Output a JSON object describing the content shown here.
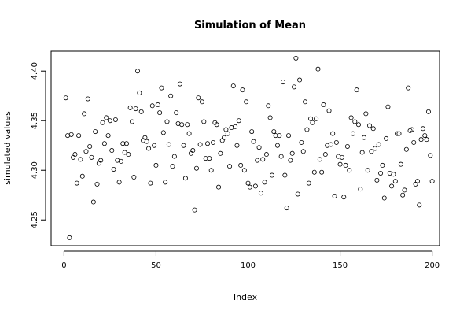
{
  "chart_data": {
    "type": "scatter",
    "title": "Simulation of Mean",
    "xlabel": "Index",
    "ylabel": "simulated values",
    "xlim": [
      -7,
      204
    ],
    "ylim": [
      4.224,
      4.42
    ],
    "xticks": [
      0,
      50,
      100,
      150,
      200
    ],
    "yticks": [
      4.25,
      4.3,
      4.35,
      4.4
    ],
    "xtick_labels": [
      "0",
      "50",
      "100",
      "150",
      "200"
    ],
    "ytick_labels": [
      "4.25",
      "4.30",
      "4.35",
      "4.40"
    ],
    "grid": false,
    "marker": "open-circle",
    "series": [
      {
        "x": [
          1,
          2,
          3,
          4,
          5,
          6,
          7,
          8,
          9,
          10,
          11,
          12,
          13,
          14,
          15,
          16,
          17,
          18,
          19,
          20,
          21,
          22,
          23,
          24,
          25,
          26,
          27,
          28,
          29,
          30,
          31,
          32,
          33,
          34,
          35,
          36,
          37,
          38,
          39,
          40,
          41,
          42,
          43,
          44,
          45,
          46,
          47,
          48,
          49,
          50,
          51,
          52,
          53,
          54,
          55,
          56,
          57,
          58,
          59,
          60,
          61,
          62,
          63,
          64,
          65,
          66,
          67,
          68,
          69,
          70,
          71,
          72,
          73,
          74,
          75,
          76,
          77,
          78,
          79,
          80,
          81,
          82,
          83,
          84,
          85,
          86,
          87,
          88,
          89,
          90,
          91,
          92,
          93,
          94,
          95,
          96,
          97,
          98,
          99,
          100,
          101,
          102,
          103,
          104,
          105,
          106,
          107,
          108,
          109,
          110,
          111,
          112,
          113,
          114,
          115,
          116,
          117,
          118,
          119,
          120,
          121,
          122,
          123,
          124,
          125,
          126,
          127,
          128,
          129,
          130,
          131,
          132,
          133,
          134,
          135,
          136,
          137,
          138,
          139,
          140,
          141,
          142,
          143,
          144,
          145,
          146,
          147,
          148,
          149,
          150,
          151,
          152,
          153,
          154,
          155,
          156,
          157,
          158,
          159,
          160,
          161,
          162,
          163,
          164,
          165,
          166,
          167,
          168,
          169,
          170,
          171,
          172,
          173,
          174,
          175,
          176,
          177,
          178,
          179,
          180,
          181,
          182,
          183,
          184,
          185,
          186,
          187,
          188,
          189,
          190,
          191,
          192,
          193,
          194,
          195,
          196,
          197,
          198,
          199,
          200
        ],
        "y": [
          4.373,
          4.335,
          4.232,
          4.336,
          4.313,
          4.316,
          4.287,
          4.335,
          4.311,
          4.294,
          4.357,
          4.319,
          4.372,
          4.324,
          4.313,
          4.268,
          4.339,
          4.286,
          4.307,
          4.31,
          4.348,
          4.327,
          4.353,
          4.335,
          4.35,
          4.32,
          4.301,
          4.351,
          4.31,
          4.288,
          4.309,
          4.327,
          4.318,
          4.327,
          4.316,
          4.363,
          4.349,
          4.293,
          4.362,
          4.4,
          4.378,
          4.359,
          4.33,
          4.333,
          4.329,
          4.322,
          4.287,
          4.365,
          4.325,
          4.305,
          4.366,
          4.358,
          4.383,
          4.338,
          4.288,
          4.349,
          4.326,
          4.375,
          4.304,
          4.314,
          4.358,
          4.347,
          4.387,
          4.346,
          4.325,
          4.292,
          4.346,
          4.337,
          4.317,
          4.32,
          4.26,
          4.302,
          4.373,
          4.326,
          4.369,
          4.349,
          4.312,
          4.327,
          4.312,
          4.3,
          4.328,
          4.348,
          4.346,
          4.283,
          4.317,
          4.33,
          4.333,
          4.341,
          4.337,
          4.304,
          4.343,
          4.385,
          4.344,
          4.325,
          4.35,
          4.305,
          4.381,
          4.3,
          4.369,
          4.287,
          4.283,
          4.339,
          4.329,
          4.284,
          4.31,
          4.323,
          4.277,
          4.311,
          4.288,
          4.316,
          4.365,
          4.353,
          4.295,
          4.339,
          4.335,
          4.325,
          4.335,
          4.314,
          4.389,
          4.295,
          4.262,
          4.335,
          4.31,
          4.317,
          4.384,
          4.413,
          4.276,
          4.391,
          4.328,
          4.319,
          4.369,
          4.341,
          4.287,
          4.352,
          4.348,
          4.298,
          4.352,
          4.402,
          4.311,
          4.298,
          4.366,
          4.316,
          4.325,
          4.36,
          4.326,
          4.337,
          4.274,
          4.328,
          4.314,
          4.306,
          4.313,
          4.273,
          4.305,
          4.324,
          4.3,
          4.353,
          4.337,
          4.349,
          4.381,
          4.346,
          4.281,
          4.318,
          4.333,
          4.357,
          4.3,
          4.345,
          4.319,
          4.342,
          4.322,
          4.29,
          4.326,
          4.297,
          4.305,
          4.272,
          4.332,
          4.364,
          4.297,
          4.284,
          4.296,
          4.289,
          4.337,
          4.337,
          4.306,
          4.275,
          4.28,
          4.321,
          4.383,
          4.34,
          4.341,
          4.328,
          4.286,
          4.289,
          4.265,
          4.331,
          4.342,
          4.335,
          4.331,
          4.359,
          4.315,
          4.289
        ]
      }
    ]
  }
}
